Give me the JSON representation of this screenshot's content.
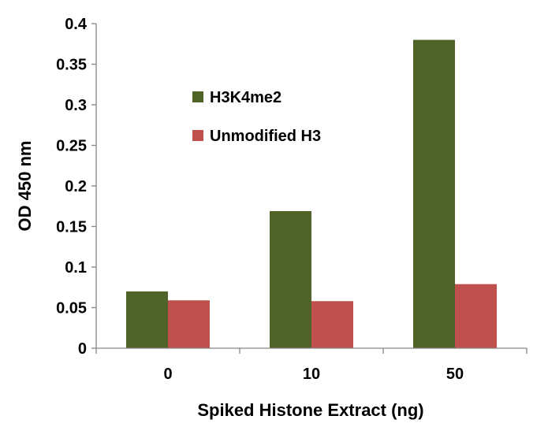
{
  "chart_data": {
    "type": "bar",
    "title": "",
    "xlabel": "Spiked Histone Extract (ng)",
    "ylabel": "OD 450 nm",
    "categories": [
      "0",
      "10",
      "50"
    ],
    "series": [
      {
        "name": "H3K4me2",
        "values": [
          0.07,
          0.169,
          0.38
        ],
        "color": "#4f6228"
      },
      {
        "name": "Unmodified H3",
        "values": [
          0.059,
          0.058,
          0.079
        ],
        "color": "#c0504d"
      }
    ],
    "ylim": [
      0,
      0.4
    ],
    "yticks": [
      {
        "value": 0,
        "label": "0"
      },
      {
        "value": 0.05,
        "label": "0.05"
      },
      {
        "value": 0.1,
        "label": "0.1"
      },
      {
        "value": 0.15,
        "label": "0.15"
      },
      {
        "value": 0.2,
        "label": "0.2"
      },
      {
        "value": 0.25,
        "label": "0.25"
      },
      {
        "value": 0.3,
        "label": "0.3"
      },
      {
        "value": 0.35,
        "label": "0.35"
      },
      {
        "value": 0.4,
        "label": "0.4"
      }
    ],
    "grid": false,
    "legend_position": "upper-left-inside",
    "axis_color": "#868686"
  }
}
